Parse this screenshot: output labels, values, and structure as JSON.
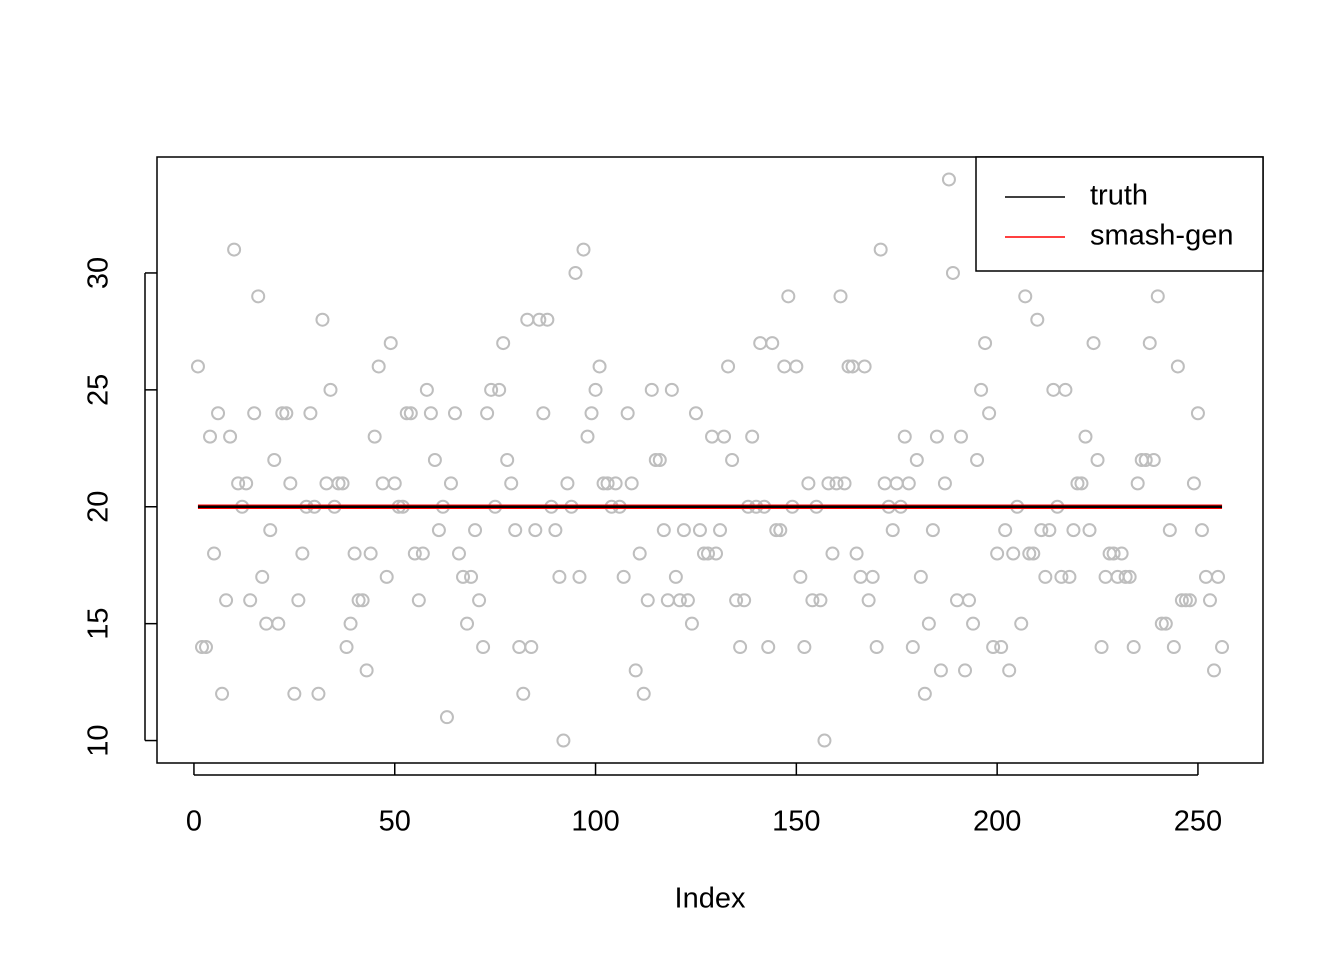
{
  "chart_data": {
    "type": "scatter",
    "xlabel": "Index",
    "x": [
      1,
      2,
      3,
      4,
      5,
      6,
      7,
      8,
      9,
      10,
      11,
      12,
      13,
      14,
      15,
      16,
      17,
      18,
      19,
      20,
      21,
      22,
      23,
      24,
      25,
      26,
      27,
      28,
      29,
      30,
      31,
      32,
      33,
      34,
      35,
      36,
      37,
      38,
      39,
      40,
      41,
      42,
      43,
      44,
      45,
      46,
      47,
      48,
      49,
      50,
      51,
      52,
      53,
      54,
      55,
      56,
      57,
      58,
      59,
      60,
      61,
      62,
      63,
      64,
      65,
      66,
      67,
      68,
      69,
      70,
      71,
      72,
      73,
      74,
      75,
      76,
      77,
      78,
      79,
      80,
      81,
      82,
      83,
      84,
      85,
      86,
      87,
      88,
      89,
      90,
      91,
      92,
      93,
      94,
      95,
      96,
      97,
      98,
      99,
      100,
      101,
      102,
      103,
      104,
      105,
      106,
      107,
      108,
      109,
      110,
      111,
      112,
      113,
      114,
      115,
      116,
      117,
      118,
      119,
      120,
      121,
      122,
      123,
      124,
      125,
      126,
      127,
      128,
      129,
      130,
      131,
      132,
      133,
      134,
      135,
      136,
      137,
      138,
      139,
      140,
      141,
      142,
      143,
      144,
      145,
      146,
      147,
      148,
      149,
      150,
      151,
      152,
      153,
      154,
      155,
      156,
      157,
      158,
      159,
      160,
      161,
      162,
      163,
      164,
      165,
      166,
      167,
      168,
      169,
      170,
      171,
      172,
      173,
      174,
      175,
      176,
      177,
      178,
      179,
      180,
      181,
      182,
      183,
      184,
      185,
      186,
      187,
      188,
      189,
      190,
      191,
      192,
      193,
      194,
      195,
      196,
      197,
      198,
      199,
      200,
      201,
      202,
      203,
      204,
      205,
      206,
      207,
      208,
      209,
      210,
      211,
      212,
      213,
      214,
      215,
      216,
      217,
      218,
      219,
      220,
      221,
      222,
      223,
      224,
      225,
      226,
      227,
      228,
      229,
      230,
      231,
      232,
      233,
      234,
      235,
      236,
      237,
      238,
      239,
      240,
      241,
      242,
      243,
      244,
      245,
      246,
      247,
      248,
      249,
      250,
      251,
      252,
      253,
      254,
      255,
      256
    ],
    "values": [
      26,
      14,
      14,
      23,
      18,
      24,
      12,
      16,
      23,
      31,
      21,
      20,
      21,
      16,
      24,
      29,
      17,
      15,
      19,
      22,
      15,
      24,
      24,
      21,
      12,
      16,
      18,
      20,
      24,
      20,
      12,
      28,
      21,
      25,
      20,
      21,
      21,
      14,
      15,
      18,
      16,
      16,
      13,
      18,
      23,
      26,
      21,
      17,
      27,
      21,
      20,
      20,
      24,
      24,
      18,
      16,
      18,
      25,
      24,
      22,
      19,
      20,
      11,
      21,
      24,
      18,
      17,
      15,
      17,
      19,
      16,
      14,
      24,
      25,
      20,
      25,
      27,
      22,
      21,
      19,
      14,
      12,
      28,
      14,
      19,
      28,
      24,
      28,
      20,
      19,
      17,
      10,
      21,
      20,
      30,
      17,
      31,
      23,
      24,
      25,
      26,
      21,
      21,
      20,
      21,
      20,
      17,
      24,
      21,
      13,
      18,
      12,
      16,
      25,
      22,
      22,
      19,
      16,
      25,
      17,
      16,
      19,
      16,
      15,
      24,
      19,
      18,
      18,
      23,
      18,
      19,
      23,
      26,
      22,
      16,
      14,
      16,
      20,
      23,
      20,
      27,
      20,
      14,
      27,
      19,
      19,
      26,
      29,
      20,
      26,
      17,
      14,
      21,
      16,
      20,
      16,
      10,
      21,
      18,
      21,
      29,
      21,
      26,
      26,
      18,
      17,
      26,
      16,
      17,
      14,
      31,
      21,
      20,
      19,
      21,
      20,
      23,
      21,
      14,
      22,
      17,
      12,
      15,
      19,
      23,
      13,
      21,
      34,
      30,
      16,
      23,
      13,
      16,
      15,
      22,
      25,
      27,
      24,
      14,
      18,
      14,
      19,
      13,
      18,
      20,
      15,
      29,
      18,
      18,
      28,
      19,
      17,
      19,
      25,
      20,
      17,
      25,
      17,
      19,
      21,
      21,
      23,
      19,
      27,
      22,
      14,
      17,
      18,
      18,
      17,
      18,
      17,
      17,
      14,
      21,
      22,
      22,
      27,
      22,
      29,
      15,
      15,
      19,
      14,
      26,
      16,
      16,
      16,
      21,
      24,
      19,
      17,
      16,
      13,
      17,
      14
    ],
    "color": "#bebebe",
    "lines": [
      {
        "name": "truth",
        "color": "#000000",
        "x": [
          1,
          256
        ],
        "values": [
          20,
          20
        ]
      },
      {
        "name": "smash-gen",
        "color": "#ff0000",
        "x": [
          1,
          256
        ],
        "values": [
          20,
          20
        ]
      }
    ],
    "xlim": [
      -9.2,
      266.2
    ],
    "ylim": [
      9.04,
      34.96
    ],
    "xticks": [
      0,
      50,
      100,
      150,
      200,
      250
    ],
    "yticks": [
      10,
      15,
      20,
      25,
      30
    ],
    "legend": "topright"
  }
}
